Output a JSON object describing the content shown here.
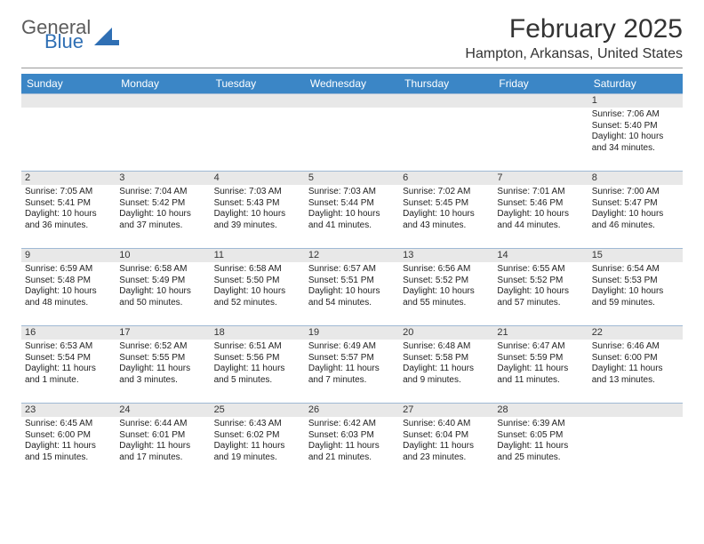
{
  "logo": {
    "word1": "General",
    "word2": "Blue"
  },
  "colors": {
    "header_blue": "#3b86c6",
    "logo_blue": "#2f6fb4",
    "logo_gray": "#5c5c5c",
    "band_gray": "#e8e8e8",
    "divider": "#999999",
    "week_border": "#9fb9d4",
    "text": "#222222"
  },
  "title": "February 2025",
  "location": "Hampton, Arkansas, United States",
  "weekdays": [
    "Sunday",
    "Monday",
    "Tuesday",
    "Wednesday",
    "Thursday",
    "Friday",
    "Saturday"
  ],
  "weeks": [
    [
      {
        "n": "",
        "sunrise": "",
        "sunset": "",
        "daylight": ""
      },
      {
        "n": "",
        "sunrise": "",
        "sunset": "",
        "daylight": ""
      },
      {
        "n": "",
        "sunrise": "",
        "sunset": "",
        "daylight": ""
      },
      {
        "n": "",
        "sunrise": "",
        "sunset": "",
        "daylight": ""
      },
      {
        "n": "",
        "sunrise": "",
        "sunset": "",
        "daylight": ""
      },
      {
        "n": "",
        "sunrise": "",
        "sunset": "",
        "daylight": ""
      },
      {
        "n": "1",
        "sunrise": "Sunrise: 7:06 AM",
        "sunset": "Sunset: 5:40 PM",
        "daylight": "Daylight: 10 hours and 34 minutes."
      }
    ],
    [
      {
        "n": "2",
        "sunrise": "Sunrise: 7:05 AM",
        "sunset": "Sunset: 5:41 PM",
        "daylight": "Daylight: 10 hours and 36 minutes."
      },
      {
        "n": "3",
        "sunrise": "Sunrise: 7:04 AM",
        "sunset": "Sunset: 5:42 PM",
        "daylight": "Daylight: 10 hours and 37 minutes."
      },
      {
        "n": "4",
        "sunrise": "Sunrise: 7:03 AM",
        "sunset": "Sunset: 5:43 PM",
        "daylight": "Daylight: 10 hours and 39 minutes."
      },
      {
        "n": "5",
        "sunrise": "Sunrise: 7:03 AM",
        "sunset": "Sunset: 5:44 PM",
        "daylight": "Daylight: 10 hours and 41 minutes."
      },
      {
        "n": "6",
        "sunrise": "Sunrise: 7:02 AM",
        "sunset": "Sunset: 5:45 PM",
        "daylight": "Daylight: 10 hours and 43 minutes."
      },
      {
        "n": "7",
        "sunrise": "Sunrise: 7:01 AM",
        "sunset": "Sunset: 5:46 PM",
        "daylight": "Daylight: 10 hours and 44 minutes."
      },
      {
        "n": "8",
        "sunrise": "Sunrise: 7:00 AM",
        "sunset": "Sunset: 5:47 PM",
        "daylight": "Daylight: 10 hours and 46 minutes."
      }
    ],
    [
      {
        "n": "9",
        "sunrise": "Sunrise: 6:59 AM",
        "sunset": "Sunset: 5:48 PM",
        "daylight": "Daylight: 10 hours and 48 minutes."
      },
      {
        "n": "10",
        "sunrise": "Sunrise: 6:58 AM",
        "sunset": "Sunset: 5:49 PM",
        "daylight": "Daylight: 10 hours and 50 minutes."
      },
      {
        "n": "11",
        "sunrise": "Sunrise: 6:58 AM",
        "sunset": "Sunset: 5:50 PM",
        "daylight": "Daylight: 10 hours and 52 minutes."
      },
      {
        "n": "12",
        "sunrise": "Sunrise: 6:57 AM",
        "sunset": "Sunset: 5:51 PM",
        "daylight": "Daylight: 10 hours and 54 minutes."
      },
      {
        "n": "13",
        "sunrise": "Sunrise: 6:56 AM",
        "sunset": "Sunset: 5:52 PM",
        "daylight": "Daylight: 10 hours and 55 minutes."
      },
      {
        "n": "14",
        "sunrise": "Sunrise: 6:55 AM",
        "sunset": "Sunset: 5:52 PM",
        "daylight": "Daylight: 10 hours and 57 minutes."
      },
      {
        "n": "15",
        "sunrise": "Sunrise: 6:54 AM",
        "sunset": "Sunset: 5:53 PM",
        "daylight": "Daylight: 10 hours and 59 minutes."
      }
    ],
    [
      {
        "n": "16",
        "sunrise": "Sunrise: 6:53 AM",
        "sunset": "Sunset: 5:54 PM",
        "daylight": "Daylight: 11 hours and 1 minute."
      },
      {
        "n": "17",
        "sunrise": "Sunrise: 6:52 AM",
        "sunset": "Sunset: 5:55 PM",
        "daylight": "Daylight: 11 hours and 3 minutes."
      },
      {
        "n": "18",
        "sunrise": "Sunrise: 6:51 AM",
        "sunset": "Sunset: 5:56 PM",
        "daylight": "Daylight: 11 hours and 5 minutes."
      },
      {
        "n": "19",
        "sunrise": "Sunrise: 6:49 AM",
        "sunset": "Sunset: 5:57 PM",
        "daylight": "Daylight: 11 hours and 7 minutes."
      },
      {
        "n": "20",
        "sunrise": "Sunrise: 6:48 AM",
        "sunset": "Sunset: 5:58 PM",
        "daylight": "Daylight: 11 hours and 9 minutes."
      },
      {
        "n": "21",
        "sunrise": "Sunrise: 6:47 AM",
        "sunset": "Sunset: 5:59 PM",
        "daylight": "Daylight: 11 hours and 11 minutes."
      },
      {
        "n": "22",
        "sunrise": "Sunrise: 6:46 AM",
        "sunset": "Sunset: 6:00 PM",
        "daylight": "Daylight: 11 hours and 13 minutes."
      }
    ],
    [
      {
        "n": "23",
        "sunrise": "Sunrise: 6:45 AM",
        "sunset": "Sunset: 6:00 PM",
        "daylight": "Daylight: 11 hours and 15 minutes."
      },
      {
        "n": "24",
        "sunrise": "Sunrise: 6:44 AM",
        "sunset": "Sunset: 6:01 PM",
        "daylight": "Daylight: 11 hours and 17 minutes."
      },
      {
        "n": "25",
        "sunrise": "Sunrise: 6:43 AM",
        "sunset": "Sunset: 6:02 PM",
        "daylight": "Daylight: 11 hours and 19 minutes."
      },
      {
        "n": "26",
        "sunrise": "Sunrise: 6:42 AM",
        "sunset": "Sunset: 6:03 PM",
        "daylight": "Daylight: 11 hours and 21 minutes."
      },
      {
        "n": "27",
        "sunrise": "Sunrise: 6:40 AM",
        "sunset": "Sunset: 6:04 PM",
        "daylight": "Daylight: 11 hours and 23 minutes."
      },
      {
        "n": "28",
        "sunrise": "Sunrise: 6:39 AM",
        "sunset": "Sunset: 6:05 PM",
        "daylight": "Daylight: 11 hours and 25 minutes."
      },
      {
        "n": "",
        "sunrise": "",
        "sunset": "",
        "daylight": ""
      }
    ]
  ]
}
